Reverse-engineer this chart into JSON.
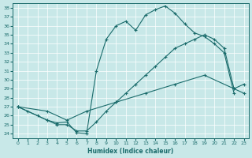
{
  "xlabel": "Humidex (Indice chaleur)",
  "bg_color": "#c8e8e8",
  "line_color": "#1a6b6b",
  "xlim": [
    -0.5,
    23.5
  ],
  "ylim": [
    23.5,
    38.5
  ],
  "xticks": [
    0,
    1,
    2,
    3,
    4,
    5,
    6,
    7,
    8,
    9,
    10,
    11,
    12,
    13,
    14,
    15,
    16,
    17,
    18,
    19,
    20,
    21,
    22,
    23
  ],
  "yticks": [
    24,
    25,
    26,
    27,
    28,
    29,
    30,
    31,
    32,
    33,
    34,
    35,
    36,
    37,
    38
  ],
  "series1": [
    [
      0,
      27
    ],
    [
      1,
      26.5
    ],
    [
      3,
      25.5
    ],
    [
      4,
      25.2
    ],
    [
      5,
      25.3
    ],
    [
      6,
      24.1
    ],
    [
      7,
      24.0
    ],
    [
      8,
      31.0
    ],
    [
      9,
      34.5
    ],
    [
      10,
      36.0
    ],
    [
      11,
      36.5
    ],
    [
      12,
      35.5
    ],
    [
      13,
      37.2
    ],
    [
      14,
      37.8
    ],
    [
      15,
      38.2
    ],
    [
      16,
      37.4
    ],
    [
      17,
      36.2
    ],
    [
      18,
      35.2
    ],
    [
      19,
      34.8
    ],
    [
      20,
      34.0
    ],
    [
      21,
      33.0
    ],
    [
      22,
      28.5
    ]
  ],
  "series2": [
    [
      0,
      27.0
    ],
    [
      2,
      26.0
    ],
    [
      3,
      25.5
    ],
    [
      4,
      25.0
    ],
    [
      5,
      25.0
    ],
    [
      6,
      24.3
    ],
    [
      7,
      24.3
    ],
    [
      8,
      25.3
    ],
    [
      9,
      26.5
    ],
    [
      10,
      27.5
    ],
    [
      11,
      28.5
    ],
    [
      12,
      29.5
    ],
    [
      13,
      30.5
    ],
    [
      14,
      31.5
    ],
    [
      15,
      32.5
    ],
    [
      16,
      33.5
    ],
    [
      17,
      34.0
    ],
    [
      18,
      34.5
    ],
    [
      19,
      35.0
    ],
    [
      20,
      34.5
    ],
    [
      21,
      33.5
    ],
    [
      22,
      29.0
    ],
    [
      23,
      29.5
    ]
  ],
  "series3": [
    [
      0,
      27.0
    ],
    [
      3,
      26.5
    ],
    [
      5,
      25.5
    ],
    [
      7,
      26.5
    ],
    [
      10,
      27.5
    ],
    [
      13,
      28.5
    ],
    [
      16,
      29.5
    ],
    [
      19,
      30.5
    ],
    [
      22,
      29.0
    ],
    [
      23,
      28.5
    ]
  ]
}
